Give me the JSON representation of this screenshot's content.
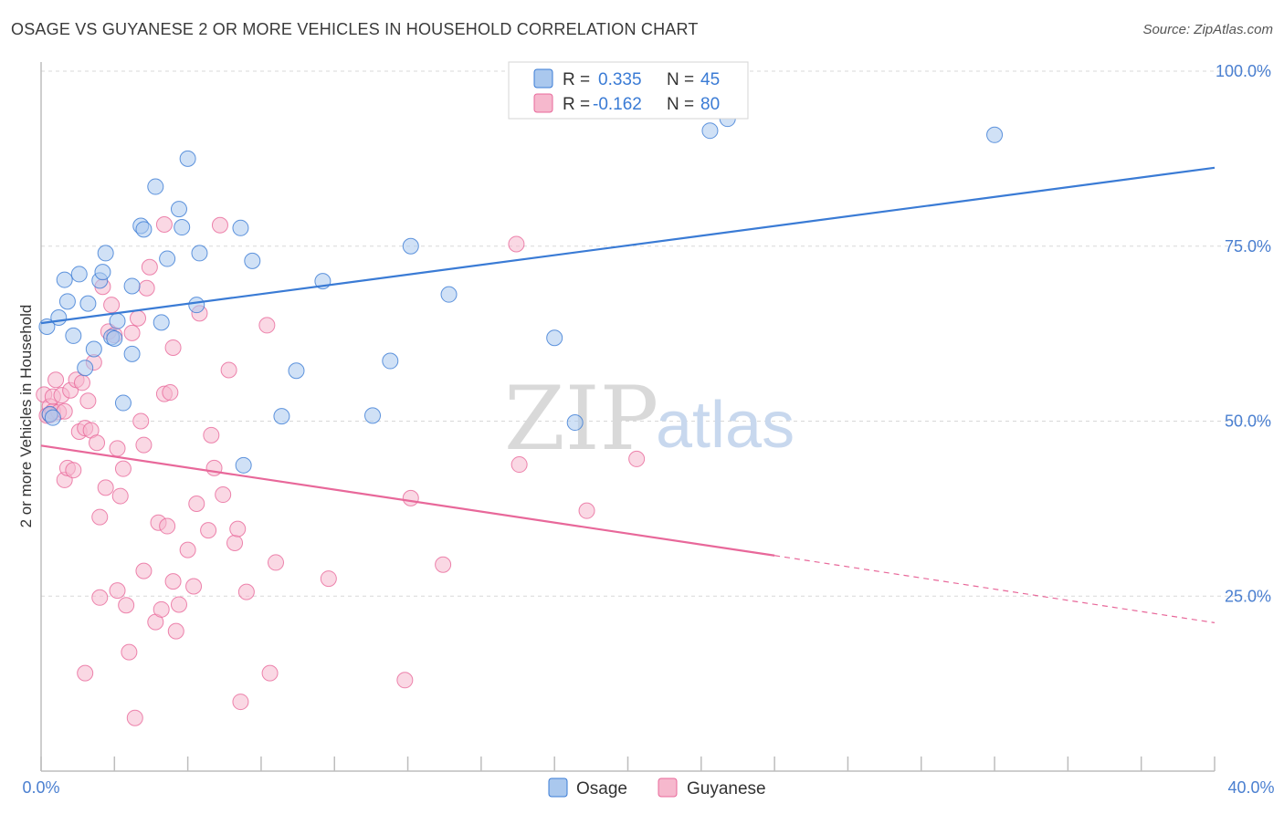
{
  "header": {
    "title": "OSAGE VS GUYANESE 2 OR MORE VEHICLES IN HOUSEHOLD CORRELATION CHART",
    "source": "Source: ZipAtlas.com"
  },
  "watermark": {
    "zip": "ZIP",
    "atlas": "atlas"
  },
  "colors": {
    "osage": "#3a7bd5",
    "osage_fill": "#aac8ee",
    "guyanese": "#e8689a",
    "guyanese_fill": "#f6b8cd",
    "tick_text": "#4a7fd0",
    "grid": "#d8d8d8"
  },
  "legend": {
    "rows": [
      {
        "r_label": "R = ",
        "r_value": "0.335",
        "n_label": "N = ",
        "n_value": "45"
      },
      {
        "r_label": "R = ",
        "r_value": "-0.162",
        "n_label": "N = ",
        "n_value": "80"
      }
    ]
  },
  "bottom_legend": [
    "Osage",
    "Guyanese"
  ],
  "chart_data": {
    "type": "scatter",
    "title": "OSAGE VS GUYANESE 2 OR MORE VEHICLES IN HOUSEHOLD CORRELATION CHART",
    "xlabel": "",
    "ylabel": "2 or more Vehicles in Household",
    "xlim": [
      0,
      40
    ],
    "ylim": [
      0,
      100
    ],
    "x_tick_labels": [
      "0.0%",
      "40.0%"
    ],
    "y_ticks": [
      25,
      50,
      75,
      100
    ],
    "y_tick_labels": [
      "25.0%",
      "50.0%",
      "75.0%",
      "100.0%"
    ],
    "grid": true,
    "legend_position": "top-center",
    "series": [
      {
        "name": "Osage",
        "color": "#3a7bd5",
        "R": 0.335,
        "N": 45,
        "trend": {
          "x": [
            0,
            40
          ],
          "y": [
            64.0,
            86.2
          ]
        },
        "points": [
          [
            0.2,
            63.5
          ],
          [
            0.3,
            51.0
          ],
          [
            0.4,
            50.5
          ],
          [
            0.6,
            64.8
          ],
          [
            0.8,
            70.2
          ],
          [
            0.9,
            67.1
          ],
          [
            1.1,
            62.2
          ],
          [
            1.3,
            71.0
          ],
          [
            1.5,
            57.6
          ],
          [
            1.6,
            66.8
          ],
          [
            1.8,
            60.3
          ],
          [
            2.0,
            70.1
          ],
          [
            2.1,
            71.3
          ],
          [
            2.2,
            74.0
          ],
          [
            2.4,
            62.0
          ],
          [
            2.6,
            64.3
          ],
          [
            2.8,
            52.6
          ],
          [
            3.1,
            69.3
          ],
          [
            3.1,
            59.6
          ],
          [
            3.4,
            77.9
          ],
          [
            3.5,
            77.4
          ],
          [
            3.9,
            83.5
          ],
          [
            4.1,
            64.1
          ],
          [
            4.3,
            73.2
          ],
          [
            4.7,
            80.3
          ],
          [
            4.8,
            77.7
          ],
          [
            5.0,
            87.5
          ],
          [
            5.3,
            66.6
          ],
          [
            5.4,
            74.0
          ],
          [
            6.8,
            77.6
          ],
          [
            6.9,
            43.7
          ],
          [
            7.2,
            72.9
          ],
          [
            8.2,
            50.7
          ],
          [
            8.7,
            57.2
          ],
          [
            9.6,
            70.0
          ],
          [
            11.3,
            50.8
          ],
          [
            11.9,
            58.6
          ],
          [
            12.6,
            75.0
          ],
          [
            13.9,
            68.1
          ],
          [
            17.5,
            61.9
          ],
          [
            18.2,
            49.8
          ],
          [
            22.8,
            91.5
          ],
          [
            23.4,
            93.2
          ],
          [
            32.5,
            90.9
          ],
          [
            2.5,
            61.8
          ]
        ]
      },
      {
        "name": "Guyanese",
        "color": "#e8689a",
        "R": -0.162,
        "N": 80,
        "trend": {
          "x": [
            0,
            25
          ],
          "y": [
            46.5,
            30.8
          ]
        },
        "trend_dashed": {
          "x": [
            25,
            40
          ],
          "y": [
            30.8,
            21.2
          ]
        },
        "points": [
          [
            0.1,
            53.8
          ],
          [
            0.2,
            50.8
          ],
          [
            0.3,
            52.1
          ],
          [
            0.4,
            51.4
          ],
          [
            0.4,
            53.5
          ],
          [
            0.5,
            55.9
          ],
          [
            0.6,
            51.3
          ],
          [
            0.7,
            53.7
          ],
          [
            0.8,
            51.4
          ],
          [
            0.8,
            41.6
          ],
          [
            0.9,
            43.3
          ],
          [
            1.0,
            54.4
          ],
          [
            1.1,
            43.0
          ],
          [
            1.2,
            55.9
          ],
          [
            1.3,
            48.5
          ],
          [
            1.4,
            55.5
          ],
          [
            1.5,
            49.0
          ],
          [
            1.5,
            14.0
          ],
          [
            1.6,
            52.9
          ],
          [
            1.7,
            48.7
          ],
          [
            1.8,
            58.4
          ],
          [
            1.9,
            46.9
          ],
          [
            2.0,
            36.3
          ],
          [
            2.0,
            24.8
          ],
          [
            2.1,
            69.2
          ],
          [
            2.2,
            40.5
          ],
          [
            2.3,
            62.8
          ],
          [
            2.4,
            66.6
          ],
          [
            2.5,
            62.3
          ],
          [
            2.6,
            46.1
          ],
          [
            2.6,
            25.8
          ],
          [
            2.7,
            39.3
          ],
          [
            2.8,
            43.2
          ],
          [
            2.9,
            23.7
          ],
          [
            3.0,
            17.0
          ],
          [
            3.1,
            62.6
          ],
          [
            3.2,
            7.6
          ],
          [
            3.3,
            64.7
          ],
          [
            3.4,
            50.0
          ],
          [
            3.5,
            46.6
          ],
          [
            3.5,
            28.6
          ],
          [
            3.6,
            69.0
          ],
          [
            3.7,
            72.0
          ],
          [
            3.9,
            21.3
          ],
          [
            4.0,
            35.5
          ],
          [
            4.1,
            23.1
          ],
          [
            4.2,
            53.9
          ],
          [
            4.2,
            78.1
          ],
          [
            4.3,
            35.0
          ],
          [
            4.4,
            54.1
          ],
          [
            4.5,
            27.1
          ],
          [
            4.5,
            60.5
          ],
          [
            4.6,
            20.0
          ],
          [
            4.7,
            23.8
          ],
          [
            5.0,
            31.6
          ],
          [
            5.2,
            26.4
          ],
          [
            5.3,
            38.2
          ],
          [
            5.4,
            65.4
          ],
          [
            5.7,
            34.4
          ],
          [
            5.8,
            48.0
          ],
          [
            5.9,
            43.3
          ],
          [
            6.1,
            78.0
          ],
          [
            6.2,
            39.5
          ],
          [
            6.4,
            57.3
          ],
          [
            6.6,
            32.6
          ],
          [
            6.7,
            34.6
          ],
          [
            6.8,
            9.9
          ],
          [
            7.0,
            25.6
          ],
          [
            7.7,
            63.7
          ],
          [
            7.8,
            14.0
          ],
          [
            8.0,
            29.8
          ],
          [
            9.8,
            27.5
          ],
          [
            12.4,
            13.0
          ],
          [
            12.6,
            39.0
          ],
          [
            13.7,
            29.5
          ],
          [
            16.2,
            75.3
          ],
          [
            16.3,
            43.8
          ],
          [
            18.6,
            37.2
          ],
          [
            20.3,
            44.6
          ],
          [
            0.3,
            50.9
          ]
        ]
      }
    ]
  }
}
